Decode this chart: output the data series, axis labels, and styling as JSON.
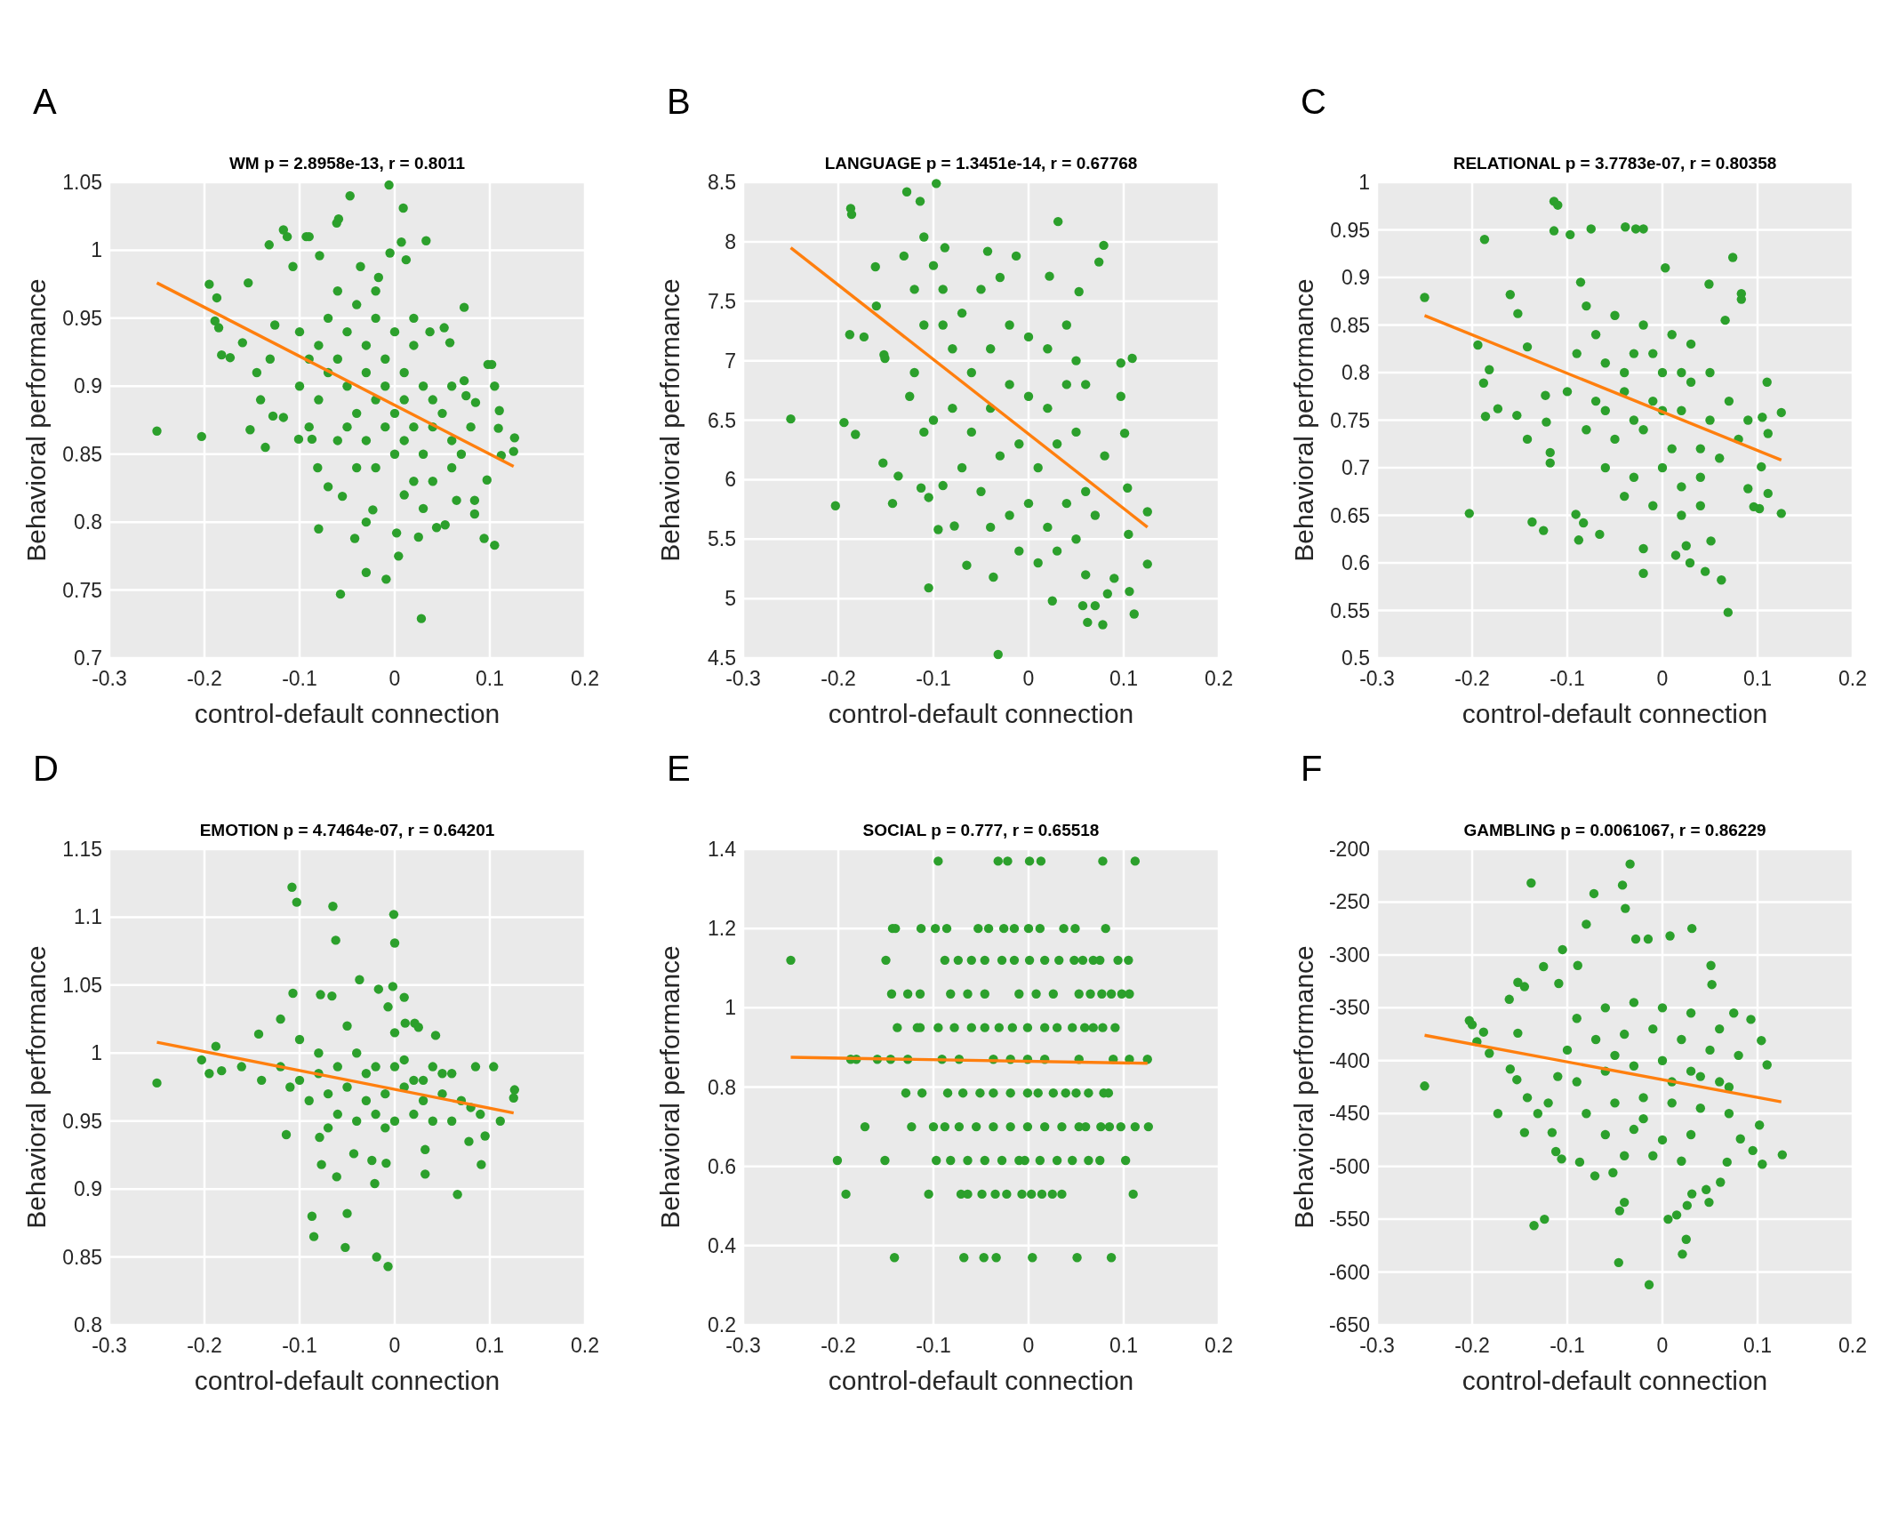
{
  "chart_data": [
    {
      "type": "scatter",
      "title": "WM p = 2.8958e-13, r = 0.8011",
      "xlabel": "control-default connection",
      "ylabel": "Behavioral performance",
      "annotations": [
        "A"
      ],
      "xlim": [
        -0.3,
        0.2
      ],
      "xticks": [
        -0.3,
        -0.2,
        -0.1,
        0,
        0.1,
        0.2
      ],
      "ylim": [
        0.7,
        1.05
      ],
      "yticks": [
        0.7,
        0.75,
        0.8,
        0.85,
        0.9,
        0.95,
        1,
        1.05
      ],
      "grid": true,
      "series": [
        {
          "marker": "circle",
          "color": "#2ca02c",
          "x": [
            -0.25,
            -0.203,
            -0.006,
            -0.047,
            0.009,
            -0.059,
            -0.061,
            -0.117,
            -0.113,
            -0.093,
            -0.09,
            0.033,
            0.007,
            -0.132,
            -0.005,
            -0.195,
            -0.154,
            -0.187,
            -0.189,
            -0.185,
            -0.182,
            -0.173,
            -0.16,
            0.073,
            0.098,
            0.102,
            0.105,
            0.11,
            0.109,
            0.126,
            0.125,
            0.112,
            0.094,
            0.105,
            0.084,
            0.084,
            -0.152,
            -0.136,
            -0.08,
            -0.042,
            -0.03,
            -0.009,
            -0.057,
            0.028,
            0.004,
            0.002,
            0.025,
            -0.03,
            0.053,
            0.044,
            0.065,
            0.052,
            0.058,
            0.037,
            -0.145,
            -0.141,
            -0.128,
            -0.117,
            -0.101,
            -0.087,
            -0.07,
            -0.081,
            -0.055,
            -0.023,
            -0.017,
            0.012,
            -0.036,
            -0.079,
            -0.107,
            -0.126,
            -0.131,
            0.073,
            0.085,
            0.097,
            0.075,
            -0.1,
            -0.09,
            -0.08,
            -0.07,
            -0.06,
            -0.05,
            -0.04,
            -0.03,
            -0.02,
            -0.01,
            0,
            0.01,
            0.02,
            0.03,
            -0.1,
            -0.08,
            -0.07,
            -0.05,
            -0.04,
            -0.03,
            -0.02,
            -0.01,
            0,
            0.01,
            0.02,
            0.04,
            0.05,
            0.06,
            -0.09,
            -0.06,
            -0.05,
            -0.03,
            -0.01,
            0.01,
            0.03,
            0.04,
            0.06,
            0.07,
            0.08,
            -0.04,
            -0.02,
            0,
            0.02,
            0.04,
            0.06,
            0.01,
            0.03,
            -0.06,
            -0.02,
            0.02
          ],
          "values": [
            0.867,
            0.863,
            1.048,
            1.04,
            1.031,
            1.023,
            1.02,
            1.015,
            1.01,
            1.01,
            1.01,
            1.007,
            1.006,
            1.004,
            0.998,
            0.975,
            0.976,
            0.965,
            0.948,
            0.943,
            0.923,
            0.921,
            0.932,
            0.958,
            0.916,
            0.916,
            0.9,
            0.882,
            0.869,
            0.862,
            0.852,
            0.849,
            0.788,
            0.783,
            0.806,
            0.816,
            0.868,
            0.855,
            0.795,
            0.788,
            0.763,
            0.758,
            0.747,
            0.729,
            0.775,
            0.792,
            0.789,
            0.8,
            0.798,
            0.796,
            0.816,
            0.943,
            0.932,
            0.94,
            0.91,
            0.89,
            0.878,
            0.877,
            0.861,
            0.861,
            0.826,
            0.84,
            0.819,
            0.809,
            0.98,
            0.993,
            0.988,
            0.996,
            0.988,
            0.945,
            0.92,
            0.904,
            0.888,
            0.831,
            0.893,
            0.94,
            0.92,
            0.93,
            0.95,
            0.92,
            0.94,
            0.96,
            0.93,
            0.95,
            0.92,
            0.94,
            0.91,
            0.93,
            0.9,
            0.9,
            0.89,
            0.91,
            0.9,
            0.88,
            0.91,
            0.89,
            0.9,
            0.88,
            0.89,
            0.87,
            0.89,
            0.88,
            0.9,
            0.87,
            0.86,
            0.87,
            0.86,
            0.87,
            0.86,
            0.85,
            0.87,
            0.86,
            0.85,
            0.87,
            0.84,
            0.84,
            0.85,
            0.83,
            0.83,
            0.84,
            0.82,
            0.81,
            0.97,
            0.97,
            0.95
          ]
        },
        {
          "type": "line",
          "color": "#ff7f0e",
          "x": [
            -0.25,
            0.125
          ],
          "values": [
            0.976,
            0.841
          ]
        }
      ]
    },
    {
      "type": "scatter",
      "title": "LANGUAGE p = 1.3451e-14, r = 0.67768",
      "xlabel": "control-default connection",
      "ylabel": "Behavioral performance",
      "annotations": [
        "B"
      ],
      "xlim": [
        -0.3,
        0.2
      ],
      "xticks": [
        -0.3,
        -0.2,
        -0.1,
        0,
        0.1,
        0.2
      ],
      "ylim": [
        4.5,
        8.5
      ],
      "yticks": [
        4.5,
        5,
        5.5,
        6,
        6.5,
        7,
        7.5,
        8,
        8.5
      ],
      "grid": true,
      "series": [
        {
          "marker": "circle",
          "color": "#2ca02c",
          "x": [
            -0.25,
            -0.203,
            -0.194,
            -0.182,
            -0.188,
            -0.173,
            -0.187,
            -0.186,
            -0.128,
            -0.114,
            -0.097,
            0.031,
            0.079,
            0.074,
            0.053,
            0.109,
            0.097,
            0.097,
            0.101,
            0.104,
            0.125,
            0.125,
            0.111,
            0.078,
            0.062,
            0.07,
            0.057,
            0.025,
            -0.032,
            -0.105,
            -0.065,
            -0.037,
            -0.143,
            -0.137,
            -0.153,
            -0.161,
            -0.16,
            -0.152,
            -0.151,
            -0.131,
            -0.11,
            -0.088,
            -0.125,
            -0.113,
            -0.105,
            -0.095,
            -0.078,
            -0.043,
            -0.013,
            0.022,
            0.105,
            0.09,
            0.106,
            0.083,
            -0.09,
            -0.07,
            -0.05,
            -0.03,
            -0.08,
            -0.06,
            -0.04,
            -0.02,
            0,
            0.02,
            -0.08,
            -0.06,
            -0.04,
            -0.02,
            0,
            0.02,
            0.04,
            0.06,
            -0.07,
            -0.05,
            -0.03,
            -0.01,
            0.01,
            0.03,
            0.05,
            -0.04,
            -0.02,
            0,
            0.02,
            0.04,
            0.06,
            -0.01,
            0.01,
            0.03,
            0.05,
            0.07,
            -0.1,
            -0.11,
            -0.12,
            -0.09,
            0.08,
            0.06,
            -0.1,
            -0.09,
            0.04,
            0.05,
            -0.12,
            -0.11
          ],
          "values": [
            6.51,
            5.78,
            6.48,
            6.38,
            7.22,
            7.2,
            8.28,
            8.23,
            8.42,
            8.34,
            8.49,
            8.17,
            7.97,
            7.83,
            7.58,
            7.02,
            6.98,
            6.7,
            6.39,
            5.93,
            5.73,
            5.29,
            4.87,
            4.78,
            4.8,
            4.94,
            4.94,
            4.98,
            4.53,
            5.09,
            5.28,
            5.18,
            5.8,
            6.03,
            6.14,
            7.79,
            7.46,
            7.05,
            7.02,
            7.88,
            8.04,
            7.95,
            6.7,
            5.93,
            5.85,
            5.58,
            5.61,
            7.92,
            7.88,
            7.71,
            5.54,
            5.17,
            5.06,
            5.04,
            7.6,
            7.4,
            7.6,
            7.7,
            7.1,
            6.9,
            7.1,
            7.3,
            7.2,
            7.1,
            6.6,
            6.4,
            6.6,
            6.8,
            6.7,
            6.6,
            6.8,
            6.8,
            6.1,
            5.9,
            6.2,
            6.3,
            6.1,
            6.3,
            6.4,
            5.6,
            5.7,
            5.8,
            5.6,
            5.8,
            5.9,
            5.4,
            5.3,
            5.4,
            5.5,
            5.7,
            6.5,
            7.3,
            7.6,
            5.95,
            6.2,
            5.2,
            7.8,
            7.3,
            7.3,
            7.0,
            6.9,
            6.4
          ]
        },
        {
          "type": "line",
          "color": "#ff7f0e",
          "x": [
            -0.25,
            0.125
          ],
          "values": [
            7.95,
            5.6
          ]
        }
      ]
    },
    {
      "type": "scatter",
      "title": "RELATIONAL p = 3.7783e-07, r = 0.80358",
      "xlabel": "control-default connection",
      "ylabel": "Behavioral performance",
      "annotations": [
        "C"
      ],
      "xlim": [
        -0.3,
        0.2
      ],
      "xticks": [
        -0.3,
        -0.2,
        -0.1,
        0,
        0.1,
        0.2
      ],
      "ylim": [
        0.5,
        1
      ],
      "yticks": [
        0.5,
        0.55,
        0.6,
        0.65,
        0.7,
        0.75,
        0.8,
        0.85,
        0.9,
        0.95,
        1
      ],
      "grid": true,
      "series": [
        {
          "marker": "circle",
          "color": "#2ca02c",
          "x": [
            -0.25,
            -0.203,
            -0.187,
            -0.194,
            -0.182,
            -0.188,
            -0.186,
            -0.173,
            -0.16,
            -0.152,
            -0.137,
            -0.125,
            -0.114,
            -0.11,
            -0.114,
            -0.097,
            -0.075,
            -0.039,
            -0.028,
            -0.02,
            0.074,
            0.003,
            0.083,
            0.083,
            0.066,
            0.049,
            0.125,
            0.125,
            0.11,
            0.105,
            0.111,
            0.104,
            0.111,
            0.096,
            0.102,
            0.09,
            0.069,
            0.062,
            0.045,
            0.029,
            0.025,
            0.014,
            -0.02,
            -0.02,
            0.051,
            -0.088,
            -0.083,
            -0.066,
            -0.091,
            -0.142,
            -0.118,
            -0.118,
            -0.122,
            -0.142,
            -0.123,
            -0.153,
            -0.086,
            -0.08,
            -0.05,
            -0.02,
            0.01,
            0.03,
            -0.09,
            -0.06,
            -0.03,
            0,
            0.03,
            0.05,
            -0.1,
            -0.07,
            -0.04,
            -0.01,
            0.02,
            0.05,
            0.07,
            -0.08,
            -0.05,
            -0.02,
            0.01,
            0.04,
            0.06,
            -0.06,
            -0.03,
            0,
            0.02,
            0.04,
            -0.01,
            0.02,
            0.04,
            -0.04,
            0.08,
            0.09,
            -0.07,
            -0.04,
            -0.01,
            0.02,
            -0.03,
            0,
            -0.06
          ],
          "values": [
            0.879,
            0.652,
            0.94,
            0.829,
            0.803,
            0.789,
            0.754,
            0.762,
            0.882,
            0.862,
            0.643,
            0.634,
            0.98,
            0.976,
            0.949,
            0.945,
            0.951,
            0.953,
            0.951,
            0.951,
            0.921,
            0.91,
            0.883,
            0.877,
            0.855,
            0.893,
            0.652,
            0.758,
            0.79,
            0.753,
            0.736,
            0.701,
            0.673,
            0.659,
            0.657,
            0.678,
            0.548,
            0.582,
            0.591,
            0.6,
            0.618,
            0.608,
            0.589,
            0.615,
            0.623,
            0.624,
            0.642,
            0.63,
            0.651,
            0.73,
            0.705,
            0.716,
            0.748,
            0.827,
            0.776,
            0.755,
            0.895,
            0.87,
            0.86,
            0.85,
            0.84,
            0.83,
            0.82,
            0.81,
            0.82,
            0.8,
            0.79,
            0.8,
            0.78,
            0.77,
            0.78,
            0.77,
            0.76,
            0.75,
            0.77,
            0.74,
            0.73,
            0.74,
            0.72,
            0.72,
            0.71,
            0.7,
            0.69,
            0.7,
            0.68,
            0.69,
            0.66,
            0.65,
            0.66,
            0.67,
            0.73,
            0.75,
            0.84,
            0.8,
            0.82,
            0.8,
            0.75,
            0.76,
            0.76
          ]
        },
        {
          "type": "line",
          "color": "#ff7f0e",
          "x": [
            -0.25,
            0.125
          ],
          "values": [
            0.86,
            0.708
          ]
        }
      ]
    },
    {
      "type": "scatter",
      "title": "EMOTION p = 4.7464e-07, r = 0.64201",
      "xlabel": "control-default connection",
      "ylabel": "Behavioral performance",
      "annotations": [
        "D"
      ],
      "xlim": [
        -0.3,
        0.2
      ],
      "xticks": [
        -0.3,
        -0.2,
        -0.1,
        0,
        0.1,
        0.2
      ],
      "ylim": [
        0.8,
        1.15
      ],
      "yticks": [
        0.8,
        0.85,
        0.9,
        0.95,
        1,
        1.05,
        1.1,
        1.15
      ],
      "grid": true,
      "series": [
        {
          "marker": "circle",
          "color": "#2ca02c",
          "x": [
            -0.25,
            -0.108,
            -0.103,
            -0.065,
            -0.062,
            -0.001,
            0,
            -0.037,
            -0.002,
            -0.017,
            0.01,
            -0.107,
            -0.078,
            -0.066,
            -0.007,
            -0.203,
            -0.195,
            -0.182,
            -0.188,
            0.126,
            0.125,
            0.104,
            0.085,
            0.111,
            -0.114,
            -0.079,
            -0.077,
            -0.061,
            -0.043,
            -0.024,
            -0.021,
            -0.009,
            0.032,
            0.066,
            0.091,
            -0.087,
            -0.085,
            -0.05,
            -0.052,
            -0.019,
            -0.007,
            0.095,
            0.078,
            0.032,
            -0.161,
            -0.143,
            -0.12,
            0.021,
            0.011,
            0.025,
            0.043,
            -0.12,
            -0.1,
            -0.08,
            -0.06,
            -0.04,
            -0.02,
            0,
            0.02,
            0.04,
            -0.09,
            -0.07,
            -0.05,
            -0.03,
            -0.01,
            0.01,
            0.03,
            0.05,
            0.07,
            -0.06,
            -0.04,
            -0.02,
            0,
            0.02,
            0.04,
            0.06,
            0.08,
            -0.14,
            -0.1,
            -0.05,
            0,
            0.09,
            -0.11,
            -0.08,
            -0.03,
            0.01,
            0.03,
            0.06,
            -0.07,
            -0.01,
            0.05
          ],
          "values": [
            0.978,
            1.122,
            1.111,
            1.108,
            1.083,
            1.102,
            1.081,
            1.054,
            1.049,
            1.047,
            1.041,
            1.044,
            1.043,
            1.042,
            1.034,
            0.995,
            0.985,
            0.987,
            1.005,
            0.973,
            0.967,
            0.99,
            0.99,
            0.95,
            0.94,
            0.938,
            0.918,
            0.909,
            0.926,
            0.921,
            0.904,
            0.919,
            0.911,
            0.896,
            0.918,
            0.88,
            0.865,
            0.882,
            0.857,
            0.85,
            0.843,
            0.939,
            0.935,
            0.929,
            0.99,
            1.014,
            1.025,
            1.022,
            1.022,
            1.019,
            1.013,
            0.99,
            0.98,
            1.0,
            0.99,
            1.0,
            0.99,
            0.99,
            0.98,
            0.99,
            0.965,
            0.97,
            0.975,
            0.965,
            0.97,
            0.975,
            0.965,
            0.97,
            0.965,
            0.955,
            0.95,
            0.955,
            0.95,
            0.955,
            0.95,
            0.95,
            0.96,
            0.98,
            1.01,
            1.02,
            1.015,
            0.955,
            0.975,
            0.985,
            0.985,
            0.995,
            0.98,
            0.985,
            0.945,
            0.945,
            0.985
          ]
        },
        {
          "type": "line",
          "color": "#ff7f0e",
          "x": [
            -0.25,
            0.125
          ],
          "values": [
            1.008,
            0.956
          ]
        }
      ]
    },
    {
      "type": "scatter",
      "title": "SOCIAL p = 0.777, r = 0.65518",
      "xlabel": "control-default connection",
      "ylabel": "Behavioral performance",
      "annotations": [
        "E"
      ],
      "xlim": [
        -0.3,
        0.2
      ],
      "xticks": [
        -0.3,
        -0.2,
        -0.1,
        0,
        0.1,
        0.2
      ],
      "ylim": [
        0.2,
        1.4
      ],
      "yticks": [
        0.2,
        0.4,
        0.6,
        0.8,
        1,
        1.2,
        1.4
      ],
      "grid": true,
      "series": [
        {
          "marker": "circle",
          "color": "#2ca02c",
          "x": [
            -0.095,
            -0.032,
            -0.022,
            0.001,
            0.013,
            0.078,
            0.112,
            -0.143,
            -0.14,
            -0.113,
            -0.098,
            -0.086,
            -0.053,
            -0.042,
            -0.026,
            -0.015,
            0,
            0.012,
            0.037,
            0.049,
            0.081,
            -0.25,
            -0.15,
            -0.088,
            -0.074,
            -0.06,
            -0.046,
            -0.028,
            -0.015,
            0.001,
            0.017,
            0.032,
            0.048,
            0.057,
            0.068,
            0.075,
            0.094,
            0.105,
            -0.144,
            -0.127,
            -0.114,
            -0.082,
            -0.064,
            -0.046,
            -0.01,
            0.008,
            0.026,
            0.053,
            0.065,
            0.077,
            0.087,
            0.098,
            0.106,
            -0.138,
            -0.117,
            -0.114,
            -0.095,
            -0.078,
            -0.06,
            -0.046,
            -0.031,
            -0.017,
            -0.001,
            0.017,
            0.03,
            0.046,
            0.059,
            0.068,
            0.078,
            0.091,
            -0.187,
            -0.181,
            -0.159,
            -0.145,
            -0.127,
            -0.091,
            -0.073,
            -0.037,
            -0.019,
            -0.001,
            0.017,
            0.053,
            0.089,
            0.106,
            0.125,
            -0.129,
            -0.112,
            -0.085,
            -0.069,
            -0.051,
            -0.037,
            -0.019,
            -0.001,
            0.01,
            0.026,
            0.039,
            0.05,
            0.063,
            0.079,
            0.084,
            -0.172,
            -0.123,
            -0.1,
            -0.088,
            -0.073,
            -0.055,
            -0.037,
            -0.019,
            -0.001,
            0.017,
            0.035,
            0.053,
            0.06,
            0.076,
            0.085,
            0.097,
            0.112,
            0.126,
            -0.201,
            -0.151,
            -0.097,
            -0.082,
            -0.064,
            -0.046,
            -0.028,
            -0.01,
            -0.004,
            0.012,
            0.03,
            0.046,
            0.063,
            0.075,
            0.102,
            -0.192,
            -0.105,
            -0.071,
            -0.064,
            -0.049,
            -0.035,
            -0.023,
            -0.007,
            0.003,
            0.014,
            0.025,
            0.035,
            0.11,
            -0.141,
            -0.068,
            -0.047,
            -0.034,
            0.004,
            0.051,
            0.087
          ],
          "values": [
            1.37,
            1.37,
            1.37,
            1.37,
            1.37,
            1.37,
            1.37,
            1.2,
            1.2,
            1.2,
            1.2,
            1.2,
            1.2,
            1.2,
            1.2,
            1.2,
            1.2,
            1.2,
            1.2,
            1.2,
            1.2,
            1.12,
            1.12,
            1.12,
            1.12,
            1.12,
            1.12,
            1.12,
            1.12,
            1.12,
            1.12,
            1.12,
            1.12,
            1.12,
            1.12,
            1.12,
            1.12,
            1.12,
            1.035,
            1.035,
            1.035,
            1.035,
            1.035,
            1.035,
            1.035,
            1.035,
            1.035,
            1.035,
            1.035,
            1.035,
            1.035,
            1.035,
            1.035,
            0.95,
            0.95,
            0.95,
            0.95,
            0.95,
            0.95,
            0.95,
            0.95,
            0.95,
            0.95,
            0.95,
            0.95,
            0.95,
            0.95,
            0.95,
            0.95,
            0.95,
            0.87,
            0.87,
            0.87,
            0.87,
            0.87,
            0.87,
            0.87,
            0.87,
            0.87,
            0.87,
            0.87,
            0.87,
            0.87,
            0.87,
            0.87,
            0.785,
            0.785,
            0.785,
            0.785,
            0.785,
            0.785,
            0.785,
            0.785,
            0.785,
            0.785,
            0.785,
            0.785,
            0.785,
            0.785,
            0.785,
            0.7,
            0.7,
            0.7,
            0.7,
            0.7,
            0.7,
            0.7,
            0.7,
            0.7,
            0.7,
            0.7,
            0.7,
            0.7,
            0.7,
            0.7,
            0.7,
            0.7,
            0.7,
            0.615,
            0.615,
            0.615,
            0.615,
            0.615,
            0.615,
            0.615,
            0.615,
            0.615,
            0.615,
            0.615,
            0.615,
            0.615,
            0.615,
            0.615,
            0.53,
            0.53,
            0.53,
            0.53,
            0.53,
            0.53,
            0.53,
            0.53,
            0.53,
            0.53,
            0.53,
            0.53,
            0.53,
            0.37,
            0.37,
            0.37,
            0.37,
            0.37,
            0.37,
            0.37
          ]
        },
        {
          "type": "line",
          "color": "#ff7f0e",
          "x": [
            -0.25,
            0.125
          ],
          "values": [
            0.875,
            0.86
          ]
        }
      ]
    },
    {
      "type": "scatter",
      "title": "GAMBLING p = 0.0061067, r = 0.86229",
      "xlabel": "control-default connection",
      "ylabel": "Behavioral performance",
      "annotations": [
        "F"
      ],
      "xlim": [
        -0.3,
        0.2
      ],
      "xticks": [
        -0.3,
        -0.2,
        -0.1,
        0,
        0.1,
        0.2
      ],
      "ylim": [
        -650,
        -200
      ],
      "yticks": [
        -650,
        -600,
        -550,
        -500,
        -450,
        -400,
        -350,
        -300,
        -250,
        -200
      ],
      "grid": true,
      "series": [
        {
          "marker": "circle",
          "color": "#2ca02c",
          "x": [
            -0.25,
            -0.203,
            -0.2,
            -0.188,
            -0.195,
            -0.182,
            -0.173,
            -0.161,
            -0.152,
            -0.145,
            -0.152,
            -0.16,
            -0.153,
            -0.145,
            -0.142,
            -0.131,
            -0.138,
            -0.135,
            -0.124,
            -0.116,
            -0.112,
            -0.106,
            -0.105,
            -0.072,
            -0.042,
            -0.034,
            -0.039,
            -0.08,
            -0.028,
            -0.015,
            0.008,
            0.031,
            0.051,
            0.052,
            -0.046,
            -0.014,
            0.021,
            0.025,
            -0.04,
            -0.045,
            0.006,
            0.015,
            0.026,
            0.031,
            0.046,
            0.049,
            0.061,
            0.095,
            0.105,
            0.126,
            0.11,
            0.104,
            0.093,
            0.075,
            0.102,
            0.082,
            0.068,
            -0.087,
            -0.071,
            -0.052,
            -0.089,
            -0.125,
            -0.109,
            -0.09,
            -0.06,
            -0.03,
            0,
            0.03,
            0.06,
            -0.1,
            -0.07,
            -0.04,
            -0.01,
            0.02,
            0.05,
            0.08,
            -0.09,
            -0.06,
            -0.03,
            0,
            0.03,
            0.06,
            -0.08,
            -0.05,
            -0.02,
            0.01,
            0.04,
            0.07,
            -0.06,
            -0.03,
            0,
            0.03,
            -0.01,
            0.02,
            -0.04,
            -0.11,
            -0.12,
            -0.05,
            0.01,
            0.04,
            -0.02,
            0.07
          ],
          "values": [
            -424,
            -362,
            -366,
            -373,
            -382,
            -393,
            -450,
            -342,
            -326,
            -330,
            -374,
            -408,
            -418,
            -468,
            -435,
            -450,
            -232,
            -556,
            -550,
            -468,
            -486,
            -493,
            -295,
            -242,
            -234,
            -214,
            -256,
            -271,
            -285,
            -285,
            -282,
            -275,
            -310,
            -328,
            -591,
            -612,
            -583,
            -569,
            -534,
            -542,
            -550,
            -546,
            -537,
            -526,
            -522,
            -534,
            -515,
            -485,
            -498,
            -489,
            -404,
            -381,
            -361,
            -355,
            -461,
            -474,
            -496,
            -496,
            -509,
            -506,
            -310,
            -311,
            -327,
            -360,
            -350,
            -345,
            -350,
            -355,
            -370,
            -390,
            -380,
            -375,
            -370,
            -380,
            -390,
            -395,
            -420,
            -410,
            -405,
            -400,
            -410,
            -420,
            -450,
            -440,
            -435,
            -440,
            -445,
            -450,
            -470,
            -465,
            -475,
            -470,
            -490,
            -495,
            -490,
            -415,
            -440,
            -395,
            -420,
            -415,
            -455,
            -425
          ]
        },
        {
          "type": "line",
          "color": "#ff7f0e",
          "x": [
            -0.25,
            0.125
          ],
          "values": [
            -376,
            -439
          ]
        }
      ]
    }
  ]
}
